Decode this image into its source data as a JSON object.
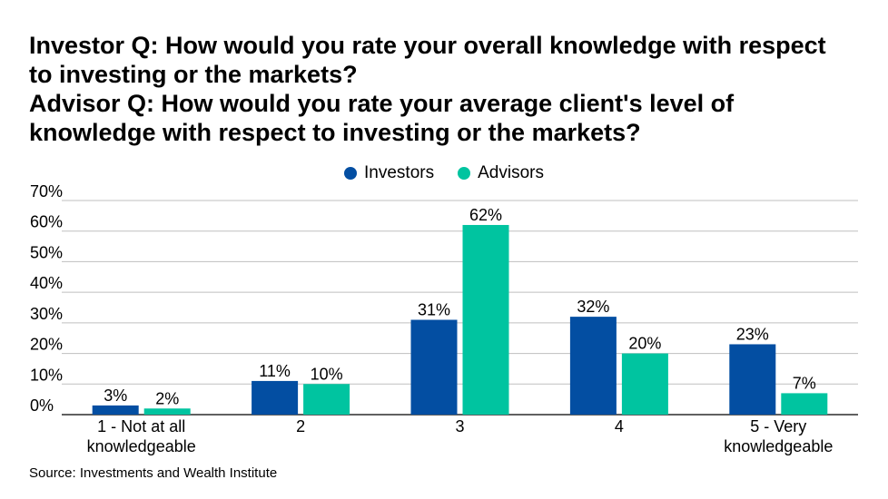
{
  "title_lines": [
    "Investor Q: How would you rate your overall knowledge with respect",
    "to investing or the markets?",
    "Advisor Q: How would you rate your average client's level of",
    "knowledge with respect to investing or the markets?"
  ],
  "source": "Source: Investments and Wealth Institute",
  "colors": {
    "investors": "#034ea2",
    "advisors": "#00c4a0",
    "grid": "#bfbfbf"
  },
  "chart_data": {
    "type": "bar",
    "categories": [
      [
        "1 - Not at all",
        "knowledgeable"
      ],
      [
        "2"
      ],
      [
        "3"
      ],
      [
        "4"
      ],
      [
        "5 - Very",
        "knowledgeable"
      ]
    ],
    "series": [
      {
        "name": "Investors",
        "values": [
          3,
          11,
          31,
          32,
          23
        ],
        "labels": [
          "3%",
          "11%",
          "31%",
          "32%",
          "23%"
        ]
      },
      {
        "name": "Advisors",
        "values": [
          2,
          10,
          62,
          20,
          7
        ],
        "labels": [
          "2%",
          "10%",
          "62%",
          "20%",
          "7%"
        ]
      }
    ],
    "yticks": [
      0,
      10,
      20,
      30,
      40,
      50,
      60,
      70
    ],
    "ytick_labels": [
      "0%",
      "10%",
      "20%",
      "30%",
      "40%",
      "50%",
      "60%",
      "70%"
    ],
    "ylim": [
      0,
      70
    ],
    "grid": true,
    "legend": "top-center"
  }
}
